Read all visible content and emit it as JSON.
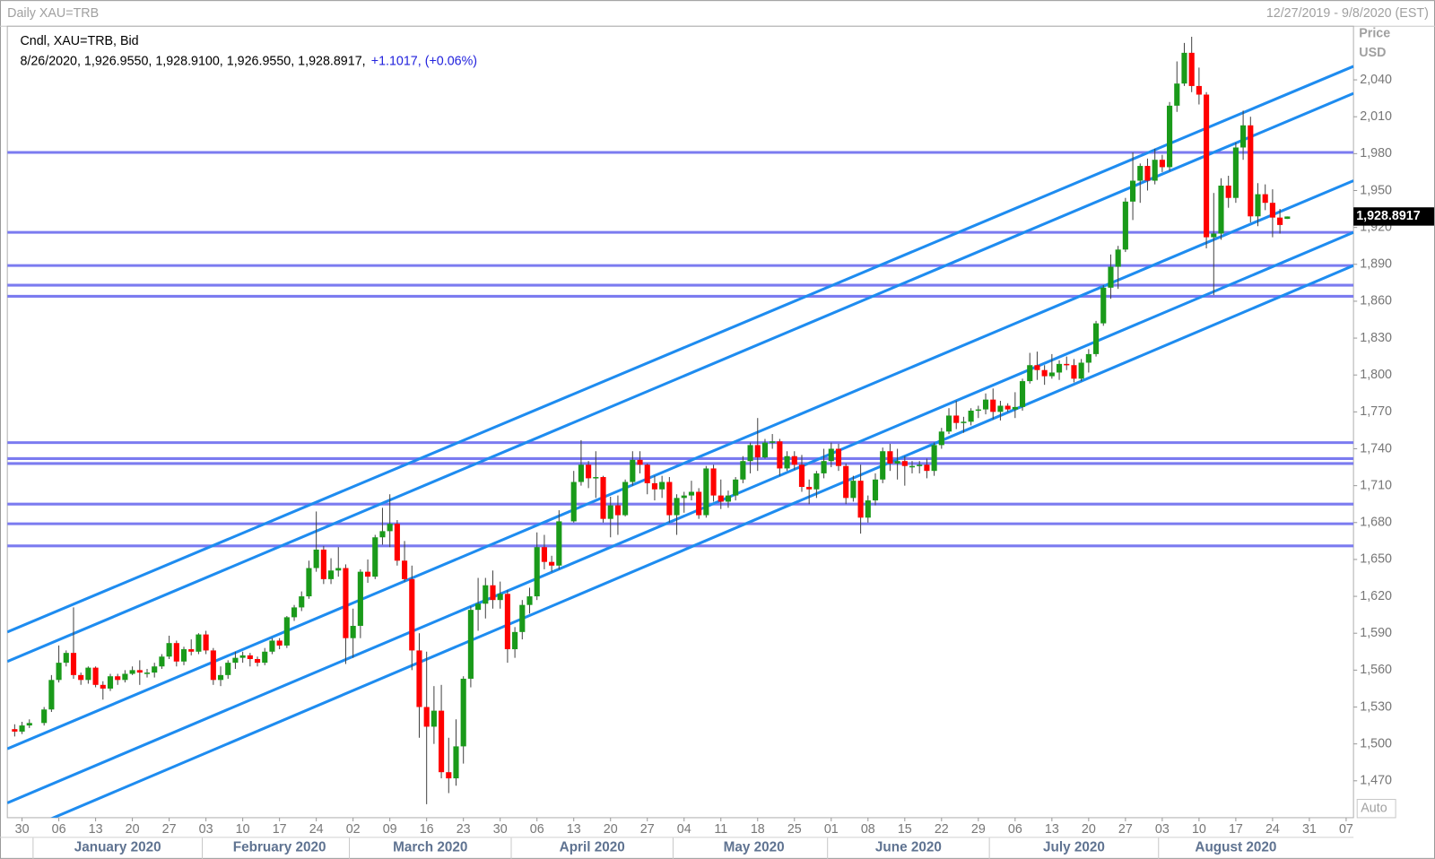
{
  "chart_data": {
    "type": "candlestick",
    "title": "Daily XAU=TRB",
    "date_range": "12/27/2019 - 9/8/2020 (EST)",
    "legend_line1": "Cndl, XAU=TRB, Bid",
    "legend_line2": "8/26/2020, 1,926.9550, 1,928.9100, 1,926.9550, 1,928.8917,",
    "legend_change": "+1.1017, (+0.06%)",
    "y_axis_label": "Price",
    "y_axis_unit": "USD",
    "scale_mode": "Auto",
    "last_price": {
      "value": 1928.8917,
      "label": "1,928.8917"
    },
    "up_color": "#1a9a1a",
    "down_color": "#ff0000",
    "hline_color": "#7b7bf0",
    "trend_color": "#1e8cf0",
    "xlim": [
      "2019-12-26",
      "2020-09-08"
    ],
    "ylim": [
      1440,
      2084
    ],
    "yticks": [
      {
        "value": 1470,
        "label": "1,470"
      },
      {
        "value": 1500,
        "label": "1,500"
      },
      {
        "value": 1530,
        "label": "1,530"
      },
      {
        "value": 1560,
        "label": "1,560"
      },
      {
        "value": 1590,
        "label": "1,590"
      },
      {
        "value": 1620,
        "label": "1,620"
      },
      {
        "value": 1650,
        "label": "1,650"
      },
      {
        "value": 1680,
        "label": "1,680"
      },
      {
        "value": 1710,
        "label": "1,710"
      },
      {
        "value": 1740,
        "label": "1,740"
      },
      {
        "value": 1770,
        "label": "1,770"
      },
      {
        "value": 1800,
        "label": "1,800"
      },
      {
        "value": 1830,
        "label": "1,830"
      },
      {
        "value": 1860,
        "label": "1,860"
      },
      {
        "value": 1890,
        "label": "1,890"
      },
      {
        "value": 1920,
        "label": "1,920"
      },
      {
        "value": 1950,
        "label": "1,950"
      },
      {
        "value": 1980,
        "label": "1,980"
      },
      {
        "value": 2010,
        "label": "2,010"
      },
      {
        "value": 2040,
        "label": "2,040"
      }
    ],
    "xticks": [
      {
        "value": "2019-12-30",
        "label": "30"
      },
      {
        "value": "2020-01-06",
        "label": "06"
      },
      {
        "value": "2020-01-13",
        "label": "13"
      },
      {
        "value": "2020-01-20",
        "label": "20"
      },
      {
        "value": "2020-01-27",
        "label": "27"
      },
      {
        "value": "2020-02-03",
        "label": "03"
      },
      {
        "value": "2020-02-10",
        "label": "10"
      },
      {
        "value": "2020-02-17",
        "label": "17"
      },
      {
        "value": "2020-02-24",
        "label": "24"
      },
      {
        "value": "2020-03-02",
        "label": "02"
      },
      {
        "value": "2020-03-09",
        "label": "09"
      },
      {
        "value": "2020-03-16",
        "label": "16"
      },
      {
        "value": "2020-03-23",
        "label": "23"
      },
      {
        "value": "2020-03-30",
        "label": "30"
      },
      {
        "value": "2020-04-06",
        "label": "06"
      },
      {
        "value": "2020-04-13",
        "label": "13"
      },
      {
        "value": "2020-04-20",
        "label": "20"
      },
      {
        "value": "2020-04-27",
        "label": "27"
      },
      {
        "value": "2020-05-04",
        "label": "04"
      },
      {
        "value": "2020-05-11",
        "label": "11"
      },
      {
        "value": "2020-05-18",
        "label": "18"
      },
      {
        "value": "2020-05-25",
        "label": "25"
      },
      {
        "value": "2020-06-01",
        "label": "01"
      },
      {
        "value": "2020-06-08",
        "label": "08"
      },
      {
        "value": "2020-06-15",
        "label": "15"
      },
      {
        "value": "2020-06-22",
        "label": "22"
      },
      {
        "value": "2020-06-29",
        "label": "29"
      },
      {
        "value": "2020-07-06",
        "label": "06"
      },
      {
        "value": "2020-07-13",
        "label": "13"
      },
      {
        "value": "2020-07-20",
        "label": "20"
      },
      {
        "value": "2020-07-27",
        "label": "27"
      },
      {
        "value": "2020-08-03",
        "label": "03"
      },
      {
        "value": "2020-08-10",
        "label": "10"
      },
      {
        "value": "2020-08-17",
        "label": "17"
      },
      {
        "value": "2020-08-24",
        "label": "24"
      },
      {
        "value": "2020-08-31",
        "label": "31"
      },
      {
        "value": "2020-09-07",
        "label": "07"
      }
    ],
    "months": [
      {
        "value": "2020-01",
        "label": "January 2020"
      },
      {
        "value": "2020-02",
        "label": "February 2020"
      },
      {
        "value": "2020-03",
        "label": "March 2020"
      },
      {
        "value": "2020-04",
        "label": "April 2020"
      },
      {
        "value": "2020-05",
        "label": "May 2020"
      },
      {
        "value": "2020-06",
        "label": "June 2020"
      },
      {
        "value": "2020-07",
        "label": "July 2020"
      },
      {
        "value": "2020-08",
        "label": "August 2020"
      }
    ],
    "hlines": [
      1981,
      1916,
      1889,
      1873,
      1864,
      1745,
      1732,
      1728,
      1695,
      1679,
      1661
    ],
    "trendlines": [
      {
        "x": [
          "2019-12-26",
          "2020-09-08"
        ],
        "y": [
          1591,
          2051
        ]
      },
      {
        "x": [
          "2019-12-26",
          "2020-09-08"
        ],
        "y": [
          1567,
          2029
        ]
      },
      {
        "x": [
          "2019-12-26",
          "2020-09-08"
        ],
        "y": [
          1496,
          1958
        ]
      },
      {
        "x": [
          "2019-12-26",
          "2020-09-08"
        ],
        "y": [
          1452,
          1916
        ]
      },
      {
        "x": [
          "2019-12-26",
          "2020-09-08"
        ],
        "y": [
          1424,
          1889
        ]
      }
    ],
    "x": [
      "2019-12-27",
      "2019-12-30",
      "2019-12-31",
      "2020-01-02",
      "2020-01-03",
      "2020-01-06",
      "2020-01-07",
      "2020-01-08",
      "2020-01-09",
      "2020-01-10",
      "2020-01-13",
      "2020-01-14",
      "2020-01-15",
      "2020-01-16",
      "2020-01-17",
      "2020-01-20",
      "2020-01-21",
      "2020-01-22",
      "2020-01-23",
      "2020-01-24",
      "2020-01-27",
      "2020-01-28",
      "2020-01-29",
      "2020-01-30",
      "2020-01-31",
      "2020-02-03",
      "2020-02-04",
      "2020-02-05",
      "2020-02-06",
      "2020-02-07",
      "2020-02-10",
      "2020-02-11",
      "2020-02-12",
      "2020-02-13",
      "2020-02-14",
      "2020-02-17",
      "2020-02-18",
      "2020-02-19",
      "2020-02-20",
      "2020-02-21",
      "2020-02-24",
      "2020-02-25",
      "2020-02-26",
      "2020-02-27",
      "2020-02-28",
      "2020-03-02",
      "2020-03-03",
      "2020-03-04",
      "2020-03-05",
      "2020-03-06",
      "2020-03-09",
      "2020-03-10",
      "2020-03-11",
      "2020-03-12",
      "2020-03-13",
      "2020-03-16",
      "2020-03-17",
      "2020-03-18",
      "2020-03-19",
      "2020-03-20",
      "2020-03-23",
      "2020-03-24",
      "2020-03-25",
      "2020-03-26",
      "2020-03-27",
      "2020-03-30",
      "2020-03-31",
      "2020-04-01",
      "2020-04-02",
      "2020-04-03",
      "2020-04-06",
      "2020-04-07",
      "2020-04-08",
      "2020-04-09",
      "2020-04-13",
      "2020-04-14",
      "2020-04-15",
      "2020-04-16",
      "2020-04-17",
      "2020-04-20",
      "2020-04-21",
      "2020-04-22",
      "2020-04-23",
      "2020-04-24",
      "2020-04-27",
      "2020-04-28",
      "2020-04-29",
      "2020-04-30",
      "2020-05-01",
      "2020-05-04",
      "2020-05-05",
      "2020-05-06",
      "2020-05-07",
      "2020-05-08",
      "2020-05-11",
      "2020-05-12",
      "2020-05-13",
      "2020-05-14",
      "2020-05-15",
      "2020-05-18",
      "2020-05-19",
      "2020-05-20",
      "2020-05-21",
      "2020-05-22",
      "2020-05-25",
      "2020-05-26",
      "2020-05-27",
      "2020-05-28",
      "2020-05-29",
      "2020-06-01",
      "2020-06-02",
      "2020-06-03",
      "2020-06-04",
      "2020-06-05",
      "2020-06-08",
      "2020-06-09",
      "2020-06-10",
      "2020-06-11",
      "2020-06-12",
      "2020-06-15",
      "2020-06-16",
      "2020-06-17",
      "2020-06-18",
      "2020-06-19",
      "2020-06-22",
      "2020-06-23",
      "2020-06-24",
      "2020-06-25",
      "2020-06-26",
      "2020-06-29",
      "2020-06-30",
      "2020-07-01",
      "2020-07-02",
      "2020-07-03",
      "2020-07-06",
      "2020-07-07",
      "2020-07-08",
      "2020-07-09",
      "2020-07-10",
      "2020-07-13",
      "2020-07-14",
      "2020-07-15",
      "2020-07-16",
      "2020-07-17",
      "2020-07-20",
      "2020-07-21",
      "2020-07-22",
      "2020-07-23",
      "2020-07-24",
      "2020-07-27",
      "2020-07-28",
      "2020-07-29",
      "2020-07-30",
      "2020-07-31",
      "2020-08-03",
      "2020-08-04",
      "2020-08-05",
      "2020-08-06",
      "2020-08-07",
      "2020-08-10",
      "2020-08-11",
      "2020-08-12",
      "2020-08-13",
      "2020-08-14",
      "2020-08-17",
      "2020-08-18",
      "2020-08-19",
      "2020-08-20",
      "2020-08-21",
      "2020-08-24",
      "2020-08-25",
      "2020-08-26"
    ],
    "open": [
      1512,
      1510,
      1515,
      1517,
      1528,
      1552,
      1566,
      1574,
      1556,
      1552,
      1562,
      1548,
      1545,
      1555,
      1552,
      1557,
      1560,
      1558,
      1558,
      1563,
      1571,
      1582,
      1567,
      1577,
      1575,
      1589,
      1576,
      1552,
      1556,
      1566,
      1570,
      1572,
      1569,
      1566,
      1575,
      1584,
      1580,
      1603,
      1611,
      1620,
      1643,
      1658,
      1634,
      1641,
      1643,
      1586,
      1596,
      1640,
      1636,
      1668,
      1673,
      1679,
      1649,
      1634,
      1576,
      1530,
      1514,
      1527,
      1477,
      1472,
      1498,
      1553,
      1609,
      1614,
      1629,
      1617,
      1622,
      1577,
      1591,
      1613,
      1620,
      1660,
      1648,
      1645,
      1681,
      1713,
      1727,
      1716,
      1717,
      1683,
      1694,
      1686,
      1713,
      1731,
      1727,
      1712,
      1707,
      1713,
      1686,
      1700,
      1702,
      1705,
      1686,
      1724,
      1702,
      1697,
      1702,
      1715,
      1730,
      1743,
      1733,
      1745,
      1746,
      1724,
      1734,
      1727,
      1709,
      1707,
      1720,
      1730,
      1740,
      1726,
      1700,
      1714,
      1684,
      1698,
      1715,
      1738,
      1728,
      1730,
      1726,
      1726,
      1727,
      1722,
      1743,
      1754,
      1767,
      1761,
      1762,
      1771,
      1772,
      1780,
      1770,
      1775,
      1772,
      1774,
      1795,
      1808,
      1804,
      1799,
      1802,
      1809,
      1808,
      1797,
      1810,
      1817,
      1842,
      1871,
      1888,
      1902,
      1941,
      1958,
      1970,
      1958,
      1975,
      1969,
      2019,
      2037,
      2062,
      2035,
      2028,
      1912,
      1915,
      1954,
      1944,
      1985,
      2003,
      1929,
      1947,
      1940,
      1928,
      1926.955
    ],
    "high": [
      1516,
      1518,
      1520,
      1530,
      1556,
      1580,
      1576,
      1611,
      1558,
      1563,
      1563,
      1551,
      1557,
      1557,
      1560,
      1563,
      1568,
      1561,
      1566,
      1573,
      1588,
      1584,
      1579,
      1585,
      1590,
      1592,
      1578,
      1563,
      1568,
      1575,
      1575,
      1574,
      1571,
      1578,
      1586,
      1586,
      1604,
      1613,
      1624,
      1649,
      1689,
      1661,
      1651,
      1660,
      1646,
      1610,
      1642,
      1650,
      1670,
      1692,
      1703,
      1682,
      1665,
      1645,
      1590,
      1575,
      1547,
      1548,
      1505,
      1520,
      1555,
      1612,
      1635,
      1635,
      1641,
      1632,
      1625,
      1595,
      1617,
      1627,
      1672,
      1670,
      1653,
      1690,
      1722,
      1747,
      1730,
      1738,
      1718,
      1701,
      1702,
      1715,
      1738,
      1738,
      1728,
      1718,
      1718,
      1717,
      1703,
      1705,
      1714,
      1708,
      1726,
      1727,
      1715,
      1706,
      1717,
      1734,
      1745,
      1765,
      1748,
      1752,
      1748,
      1738,
      1738,
      1735,
      1715,
      1722,
      1740,
      1745,
      1744,
      1728,
      1718,
      1727,
      1702,
      1720,
      1741,
      1744,
      1740,
      1734,
      1730,
      1730,
      1732,
      1745,
      1757,
      1773,
      1779,
      1766,
      1773,
      1775,
      1785,
      1789,
      1779,
      1777,
      1786,
      1797,
      1818,
      1819,
      1808,
      1817,
      1812,
      1815,
      1813,
      1813,
      1821,
      1844,
      1873,
      1898,
      1905,
      1944,
      1981,
      1972,
      1976,
      1984,
      1979,
      2022,
      2055,
      2070,
      2075,
      2050,
      2030,
      1948,
      1960,
      1962,
      1989,
      2015,
      2010,
      1956,
      1955,
      1951,
      1935,
      1928.91
    ],
    "low": [
      1506,
      1508,
      1513,
      1515,
      1526,
      1550,
      1563,
      1553,
      1548,
      1549,
      1546,
      1536,
      1543,
      1548,
      1550,
      1556,
      1548,
      1554,
      1554,
      1561,
      1569,
      1563,
      1564,
      1572,
      1573,
      1573,
      1548,
      1547,
      1553,
      1561,
      1566,
      1563,
      1563,
      1564,
      1573,
      1577,
      1578,
      1600,
      1608,
      1618,
      1640,
      1630,
      1630,
      1636,
      1565,
      1570,
      1586,
      1631,
      1634,
      1662,
      1660,
      1645,
      1632,
      1560,
      1505,
      1451,
      1500,
      1472,
      1460,
      1466,
      1484,
      1546,
      1592,
      1602,
      1610,
      1610,
      1566,
      1570,
      1585,
      1606,
      1617,
      1642,
      1640,
      1642,
      1680,
      1710,
      1708,
      1700,
      1680,
      1668,
      1670,
      1685,
      1710,
      1720,
      1703,
      1698,
      1700,
      1680,
      1670,
      1688,
      1698,
      1683,
      1684,
      1697,
      1691,
      1692,
      1698,
      1712,
      1720,
      1722,
      1732,
      1740,
      1718,
      1722,
      1723,
      1705,
      1695,
      1700,
      1716,
      1725,
      1722,
      1695,
      1697,
      1671,
      1680,
      1694,
      1712,
      1722,
      1715,
      1710,
      1720,
      1720,
      1716,
      1718,
      1740,
      1752,
      1756,
      1753,
      1759,
      1765,
      1768,
      1764,
      1763,
      1770,
      1765,
      1771,
      1793,
      1796,
      1792,
      1797,
      1796,
      1804,
      1794,
      1795,
      1802,
      1815,
      1840,
      1862,
      1870,
      1900,
      1926,
      1940,
      1950,
      1955,
      1965,
      1966,
      2014,
      2035,
      2030,
      2020,
      1903,
      1865,
      1910,
      1936,
      1940,
      1975,
      1924,
      1921,
      1934,
      1912,
      1915,
      1926.955
    ],
    "close": [
      1510,
      1515,
      1517,
      1528,
      1552,
      1566,
      1574,
      1556,
      1552,
      1562,
      1548,
      1545,
      1555,
      1552,
      1557,
      1560,
      1558,
      1558,
      1563,
      1571,
      1582,
      1567,
      1577,
      1575,
      1589,
      1576,
      1552,
      1556,
      1566,
      1570,
      1572,
      1569,
      1566,
      1575,
      1584,
      1580,
      1603,
      1611,
      1620,
      1643,
      1658,
      1634,
      1641,
      1643,
      1586,
      1596,
      1640,
      1636,
      1668,
      1673,
      1679,
      1649,
      1634,
      1576,
      1530,
      1514,
      1527,
      1477,
      1472,
      1498,
      1553,
      1609,
      1614,
      1629,
      1617,
      1622,
      1577,
      1591,
      1613,
      1620,
      1660,
      1648,
      1645,
      1681,
      1713,
      1727,
      1716,
      1717,
      1683,
      1694,
      1686,
      1713,
      1731,
      1727,
      1712,
      1707,
      1713,
      1686,
      1700,
      1702,
      1705,
      1686,
      1724,
      1702,
      1697,
      1702,
      1715,
      1730,
      1743,
      1733,
      1745,
      1746,
      1724,
      1734,
      1727,
      1709,
      1707,
      1720,
      1730,
      1740,
      1726,
      1700,
      1714,
      1684,
      1698,
      1715,
      1738,
      1728,
      1730,
      1726,
      1726,
      1727,
      1722,
      1743,
      1754,
      1767,
      1761,
      1762,
      1771,
      1772,
      1780,
      1770,
      1775,
      1772,
      1774,
      1795,
      1808,
      1804,
      1799,
      1802,
      1809,
      1808,
      1797,
      1810,
      1817,
      1842,
      1871,
      1888,
      1902,
      1941,
      1958,
      1970,
      1958,
      1975,
      1969,
      2019,
      2037,
      2062,
      2035,
      2028,
      1912,
      1915,
      1954,
      1944,
      1985,
      2003,
      1929,
      1947,
      1940,
      1928,
      1922,
      1928.8917
    ]
  }
}
